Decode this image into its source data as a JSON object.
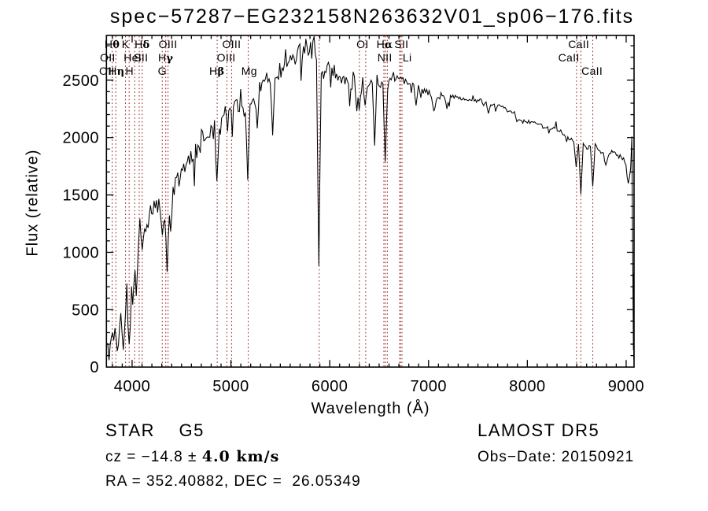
{
  "title": "spec−57287−EG232158N263632V01_sp06−176.fits",
  "annotations": {
    "class_line": "STAR    G5",
    "cz_prefix": "cz = −14.8 ± ",
    "cz_value": "4.0 km/s",
    "radec": "RA = 352.40882, DEC =  26.05349",
    "survey": "LAMOST DR5",
    "obs_date": "Obs−Date: 20150921"
  },
  "colors": {
    "spectrum": "#000000",
    "reference_line": "#a33535",
    "axis": "#000000",
    "background": "#ffffff"
  },
  "chart_data": {
    "type": "line",
    "title": "spec−57287−EG232158N263632V01_sp06−176.fits",
    "xlabel": "Wavelength (Å)",
    "ylabel": "Flux (relative)",
    "xlim": [
      3740,
      9080
    ],
    "ylim": [
      0,
      2890
    ],
    "x_ticks": [
      4000,
      5000,
      6000,
      7000,
      8000,
      9000
    ],
    "y_ticks": [
      0,
      500,
      1000,
      1500,
      2000,
      2500
    ],
    "x_minor_step": 100,
    "y_minor_step": 100,
    "grid": false,
    "legend": "none",
    "spectral_lines": [
      {
        "label": "Hθ",
        "row": 1,
        "label_wavelength": 3798,
        "lines": [
          3798
        ]
      },
      {
        "label": "K",
        "row": 1,
        "label_wavelength": 3933,
        "lines": [
          3933
        ]
      },
      {
        "label": "Hδ",
        "row": 1,
        "label_wavelength": 4102,
        "lines": [
          4102
        ]
      },
      {
        "label": "OIII",
        "row": 1,
        "label_wavelength": 4363,
        "lines": [
          4363
        ]
      },
      {
        "label": "OIII",
        "row": 1,
        "label_wavelength": 5007,
        "lines": [
          5007
        ]
      },
      {
        "label": "OI",
        "row": 1,
        "label_wavelength": 6332,
        "lines": [
          6300,
          6364
        ]
      },
      {
        "label": "Hα",
        "row": 1,
        "label_wavelength": 6556,
        "lines": [
          6563
        ]
      },
      {
        "label": "SII",
        "row": 1,
        "label_wavelength": 6726,
        "lines": [
          6716,
          6731
        ]
      },
      {
        "label": "CaII",
        "row": 1,
        "label_wavelength": 8520,
        "lines": [
          8542
        ]
      },
      {
        "label": "OII",
        "row": 2,
        "label_wavelength": 3752,
        "lines": []
      },
      {
        "label": "HeI",
        "row": 2,
        "label_wavelength": 4005,
        "lines": [
          4026
        ]
      },
      {
        "label": "SII",
        "row": 2,
        "label_wavelength": 4090,
        "lines": [
          4072
        ]
      },
      {
        "label": "Hγ",
        "row": 2,
        "label_wavelength": 4340,
        "lines": [
          4340
        ]
      },
      {
        "label": "OIII",
        "row": 2,
        "label_wavelength": 4952,
        "lines": [
          4959
        ]
      },
      {
        "label": "NII",
        "row": 2,
        "label_wavelength": 6557,
        "lines": [
          6548,
          6583
        ]
      },
      {
        "label": "Li",
        "row": 2,
        "label_wavelength": 6784,
        "lines": [
          6708
        ]
      },
      {
        "label": "CaII",
        "row": 2,
        "label_wavelength": 8420,
        "lines": [
          8498
        ]
      },
      {
        "label": "OII",
        "row": 3,
        "label_wavelength": 3744,
        "lines": []
      },
      {
        "label": "Hη",
        "row": 3,
        "label_wavelength": 3843,
        "lines": [
          3835
        ]
      },
      {
        "label": "H",
        "row": 3,
        "label_wavelength": 3974,
        "lines": [
          3970
        ]
      },
      {
        "label": "G",
        "row": 3,
        "label_wavelength": 4305,
        "lines": [
          4305
        ]
      },
      {
        "label": "Hβ",
        "row": 3,
        "label_wavelength": 4858,
        "lines": [
          4861
        ]
      },
      {
        "label": "Mg",
        "row": 3,
        "label_wavelength": 5185,
        "lines": [
          5175
        ]
      },
      {
        "label": "CaII",
        "row": 3,
        "label_wavelength": 8655,
        "lines": [
          8662
        ]
      }
    ],
    "unlabeled_lines": [
      5893
    ],
    "spectrum_envelope": [
      [
        3742,
        300
      ],
      [
        3780,
        340
      ],
      [
        3830,
        330
      ],
      [
        3880,
        420
      ],
      [
        3930,
        470
      ],
      [
        3970,
        520
      ],
      [
        4000,
        680
      ],
      [
        4040,
        1050
      ],
      [
        4090,
        1220
      ],
      [
        4150,
        1300
      ],
      [
        4220,
        1390
      ],
      [
        4290,
        1350
      ],
      [
        4360,
        1420
      ],
      [
        4430,
        1540
      ],
      [
        4500,
        1700
      ],
      [
        4600,
        1840
      ],
      [
        4700,
        1960
      ],
      [
        4800,
        2060
      ],
      [
        4861,
        2030
      ],
      [
        4920,
        2150
      ],
      [
        5000,
        2250
      ],
      [
        5090,
        2330
      ],
      [
        5175,
        2280
      ],
      [
        5250,
        2400
      ],
      [
        5350,
        2470
      ],
      [
        5450,
        2550
      ],
      [
        5550,
        2620
      ],
      [
        5650,
        2700
      ],
      [
        5760,
        2770
      ],
      [
        5850,
        2780
      ],
      [
        5893,
        2650
      ],
      [
        5950,
        2600
      ],
      [
        6050,
        2560
      ],
      [
        6150,
        2500
      ],
      [
        6250,
        2490
      ],
      [
        6330,
        2440
      ],
      [
        6420,
        2500
      ],
      [
        6500,
        2480
      ],
      [
        6563,
        2450
      ],
      [
        6650,
        2520
      ],
      [
        6750,
        2490
      ],
      [
        6850,
        2450
      ],
      [
        6950,
        2410
      ],
      [
        7050,
        2340
      ],
      [
        7150,
        2370
      ],
      [
        7250,
        2360
      ],
      [
        7350,
        2340
      ],
      [
        7450,
        2330
      ],
      [
        7550,
        2310
      ],
      [
        7650,
        2290
      ],
      [
        7780,
        2260
      ],
      [
        7850,
        2230
      ],
      [
        7920,
        2150
      ],
      [
        8000,
        2140
      ],
      [
        8100,
        2120
      ],
      [
        8200,
        2090
      ],
      [
        8300,
        2060
      ],
      [
        8400,
        2020
      ],
      [
        8470,
        1970
      ],
      [
        8520,
        1950
      ],
      [
        8600,
        1930
      ],
      [
        8700,
        1910
      ],
      [
        8790,
        1830
      ],
      [
        8850,
        1870
      ],
      [
        8900,
        1860
      ],
      [
        8950,
        1830
      ],
      [
        9000,
        1780
      ],
      [
        9030,
        1680
      ],
      [
        9048,
        1750
      ],
      [
        9062,
        2000
      ],
      [
        9070,
        1960
      ],
      [
        9074,
        150
      ],
      [
        9076,
        820
      ],
      [
        9078,
        60
      ],
      [
        9079,
        500
      ]
    ],
    "noise_amplitude": [
      [
        3742,
        260
      ],
      [
        3950,
        260
      ],
      [
        4000,
        170
      ],
      [
        4300,
        140
      ],
      [
        4400,
        150
      ],
      [
        5200,
        140
      ],
      [
        5600,
        110
      ],
      [
        6000,
        100
      ],
      [
        6300,
        110
      ],
      [
        6600,
        80
      ],
      [
        6800,
        55
      ],
      [
        7300,
        40
      ],
      [
        7800,
        35
      ],
      [
        8300,
        30
      ],
      [
        8600,
        40
      ],
      [
        8900,
        35
      ],
      [
        9040,
        40
      ],
      [
        9070,
        10
      ]
    ],
    "absorption_dips": [
      [
        3770,
        60
      ],
      [
        3850,
        140
      ],
      [
        3915,
        150
      ],
      [
        3968,
        200
      ],
      [
        4045,
        620
      ],
      [
        4101,
        1020
      ],
      [
        4310,
        1150
      ],
      [
        4340,
        1160
      ],
      [
        4355,
        830
      ],
      [
        4385,
        1180
      ],
      [
        4861,
        1620
      ],
      [
        5175,
        1630
      ],
      [
        5270,
        2080
      ],
      [
        5420,
        2020
      ],
      [
        5893,
        880
      ],
      [
        6270,
        2230
      ],
      [
        6300,
        2240
      ],
      [
        6360,
        2280
      ],
      [
        6450,
        1930
      ],
      [
        6563,
        1790
      ],
      [
        6870,
        2280
      ],
      [
        7060,
        2230
      ],
      [
        7190,
        2250
      ],
      [
        7610,
        2210
      ],
      [
        8498,
        1745
      ],
      [
        8542,
        1505
      ],
      [
        8662,
        1575
      ],
      [
        8790,
        1760
      ],
      [
        9020,
        1600
      ]
    ],
    "emission_peaks": [
      [
        5560,
        2770
      ],
      [
        5760,
        2860
      ],
      [
        5845,
        2882
      ],
      [
        8290,
        2140
      ],
      [
        9062,
        2010
      ]
    ]
  }
}
